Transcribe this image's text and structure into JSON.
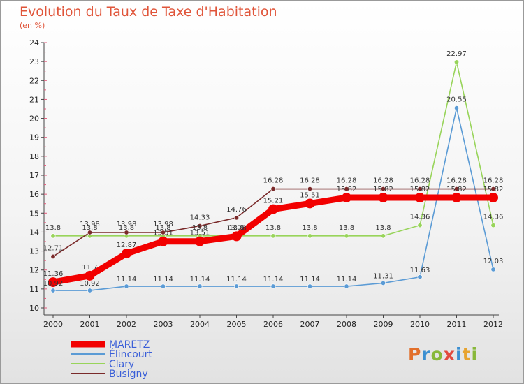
{
  "title": "Evolution du Taux de Taxe d'Habitation",
  "subtitle": "(en %)",
  "logo_text": "Proxiti",
  "chart_data": {
    "type": "line",
    "title": "Evolution du Taux de Taxe d'Habitation",
    "subtitle": "(en %)",
    "xlabel": "",
    "ylabel": "",
    "x": [
      "2000",
      "2001",
      "2002",
      "2003",
      "2004",
      "2005",
      "2006",
      "2007",
      "2008",
      "2009",
      "2010",
      "2011",
      "2012"
    ],
    "y_ticks": [
      10,
      11,
      12,
      13,
      14,
      15,
      16,
      17,
      18,
      19,
      20,
      21,
      22,
      23,
      24
    ],
    "ylim": [
      10,
      24
    ],
    "grid": false,
    "legend_position": "bottom-left",
    "series": [
      {
        "name": "MARETZ",
        "color": "#f20000",
        "values": [
          11.36,
          11.7,
          12.87,
          13.51,
          13.51,
          13.78,
          15.21,
          15.51,
          15.82,
          15.82,
          15.82,
          15.82,
          15.82
        ],
        "labels": [
          "11.36",
          "11.7",
          "12.87",
          "13.51",
          "13.51",
          "13.78",
          "15.21",
          "15.51",
          "15.82",
          "15.82",
          "15.82",
          "15.82",
          "15.82"
        ]
      },
      {
        "name": "Élincourt",
        "color": "#5b9bd5",
        "values": [
          10.92,
          10.92,
          11.14,
          11.14,
          11.14,
          11.14,
          11.14,
          11.14,
          11.14,
          11.31,
          11.63,
          20.55,
          12.03
        ],
        "labels": [
          "10.92",
          "10.92",
          "11.14",
          "11.14",
          "11.14",
          "11.14",
          "11.14",
          "11.14",
          "11.14",
          "11.31",
          "11.63",
          "20.55",
          "12.03"
        ]
      },
      {
        "name": "Clary",
        "color": "#98d45a",
        "values": [
          13.8,
          13.8,
          13.8,
          13.8,
          13.8,
          13.8,
          13.8,
          13.8,
          13.8,
          13.8,
          14.36,
          22.97,
          14.36
        ],
        "labels": [
          "13.8",
          "13.8",
          "13.8",
          "13.8",
          "13.8",
          "13.8",
          "13.8",
          "13.8",
          "13.8",
          "13.8",
          "14.36",
          "22.97",
          "14.36"
        ]
      },
      {
        "name": "Busigny",
        "color": "#7a2a2a",
        "values": [
          12.71,
          13.98,
          13.98,
          13.98,
          14.33,
          14.76,
          16.28,
          16.28,
          16.28,
          16.28,
          16.28,
          16.28,
          16.28
        ],
        "labels": [
          "12.71",
          "13.98",
          "13.98",
          "13.98",
          "14.33",
          "14.76",
          "16.28",
          "16.28",
          "16.28",
          "16.28",
          "16.28",
          "16.28",
          "16.28"
        ]
      }
    ]
  }
}
